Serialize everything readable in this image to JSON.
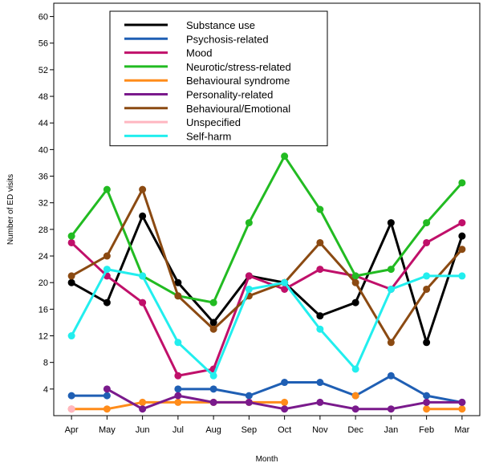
{
  "chart_data": {
    "type": "line",
    "title": "",
    "xlabel": "Month",
    "ylabel": "Number of ED visits",
    "categories": [
      "Apr",
      "May",
      "Jun",
      "Jul",
      "Aug",
      "Sep",
      "Oct",
      "Nov",
      "Dec",
      "Jan",
      "Feb",
      "Mar"
    ],
    "ylim": [
      0,
      62
    ],
    "yticks": [
      4,
      8,
      12,
      16,
      20,
      24,
      28,
      32,
      36,
      40,
      44,
      48,
      52,
      56,
      60
    ],
    "grid": false,
    "legend_position": "top",
    "series": [
      {
        "name": "Substance use",
        "color": "#000000",
        "values": [
          20,
          17,
          30,
          20,
          14,
          21,
          20,
          15,
          17,
          29,
          11,
          27
        ]
      },
      {
        "name": "Psychosis-related",
        "color": "#1f5fb4",
        "values": [
          3,
          3,
          null,
          4,
          4,
          3,
          5,
          5,
          3,
          6,
          3,
          2
        ]
      },
      {
        "name": "Mood",
        "color": "#c0106a",
        "values": [
          26,
          21,
          17,
          6,
          7,
          21,
          19,
          22,
          21,
          19,
          26,
          29
        ]
      },
      {
        "name": "Neurotic/stress-related",
        "color": "#22bb22",
        "values": [
          27,
          34,
          21,
          18,
          17,
          29,
          39,
          31,
          21,
          22,
          29,
          35
        ]
      },
      {
        "name": "Behavioural syndrome",
        "color": "#ff8c1a",
        "values": [
          1,
          1,
          2,
          2,
          2,
          2,
          2,
          null,
          3,
          null,
          1,
          1
        ]
      },
      {
        "name": "Personality-related",
        "color": "#7a1a8c",
        "values": [
          null,
          4,
          1,
          3,
          2,
          2,
          1,
          2,
          1,
          1,
          2,
          2
        ]
      },
      {
        "name": "Behavioural/Emotional",
        "color": "#8b4a12",
        "values": [
          21,
          24,
          34,
          18,
          13,
          18,
          20,
          26,
          20,
          11,
          19,
          25
        ]
      },
      {
        "name": "Unspecified",
        "color": "#ffb6c1",
        "values": [
          1,
          null,
          null,
          null,
          null,
          null,
          null,
          null,
          null,
          null,
          null,
          null
        ]
      },
      {
        "name": "Self-harm",
        "color": "#22eeee",
        "values": [
          12,
          22,
          21,
          11,
          6,
          19,
          20,
          13,
          7,
          19,
          21,
          21
        ]
      }
    ]
  }
}
